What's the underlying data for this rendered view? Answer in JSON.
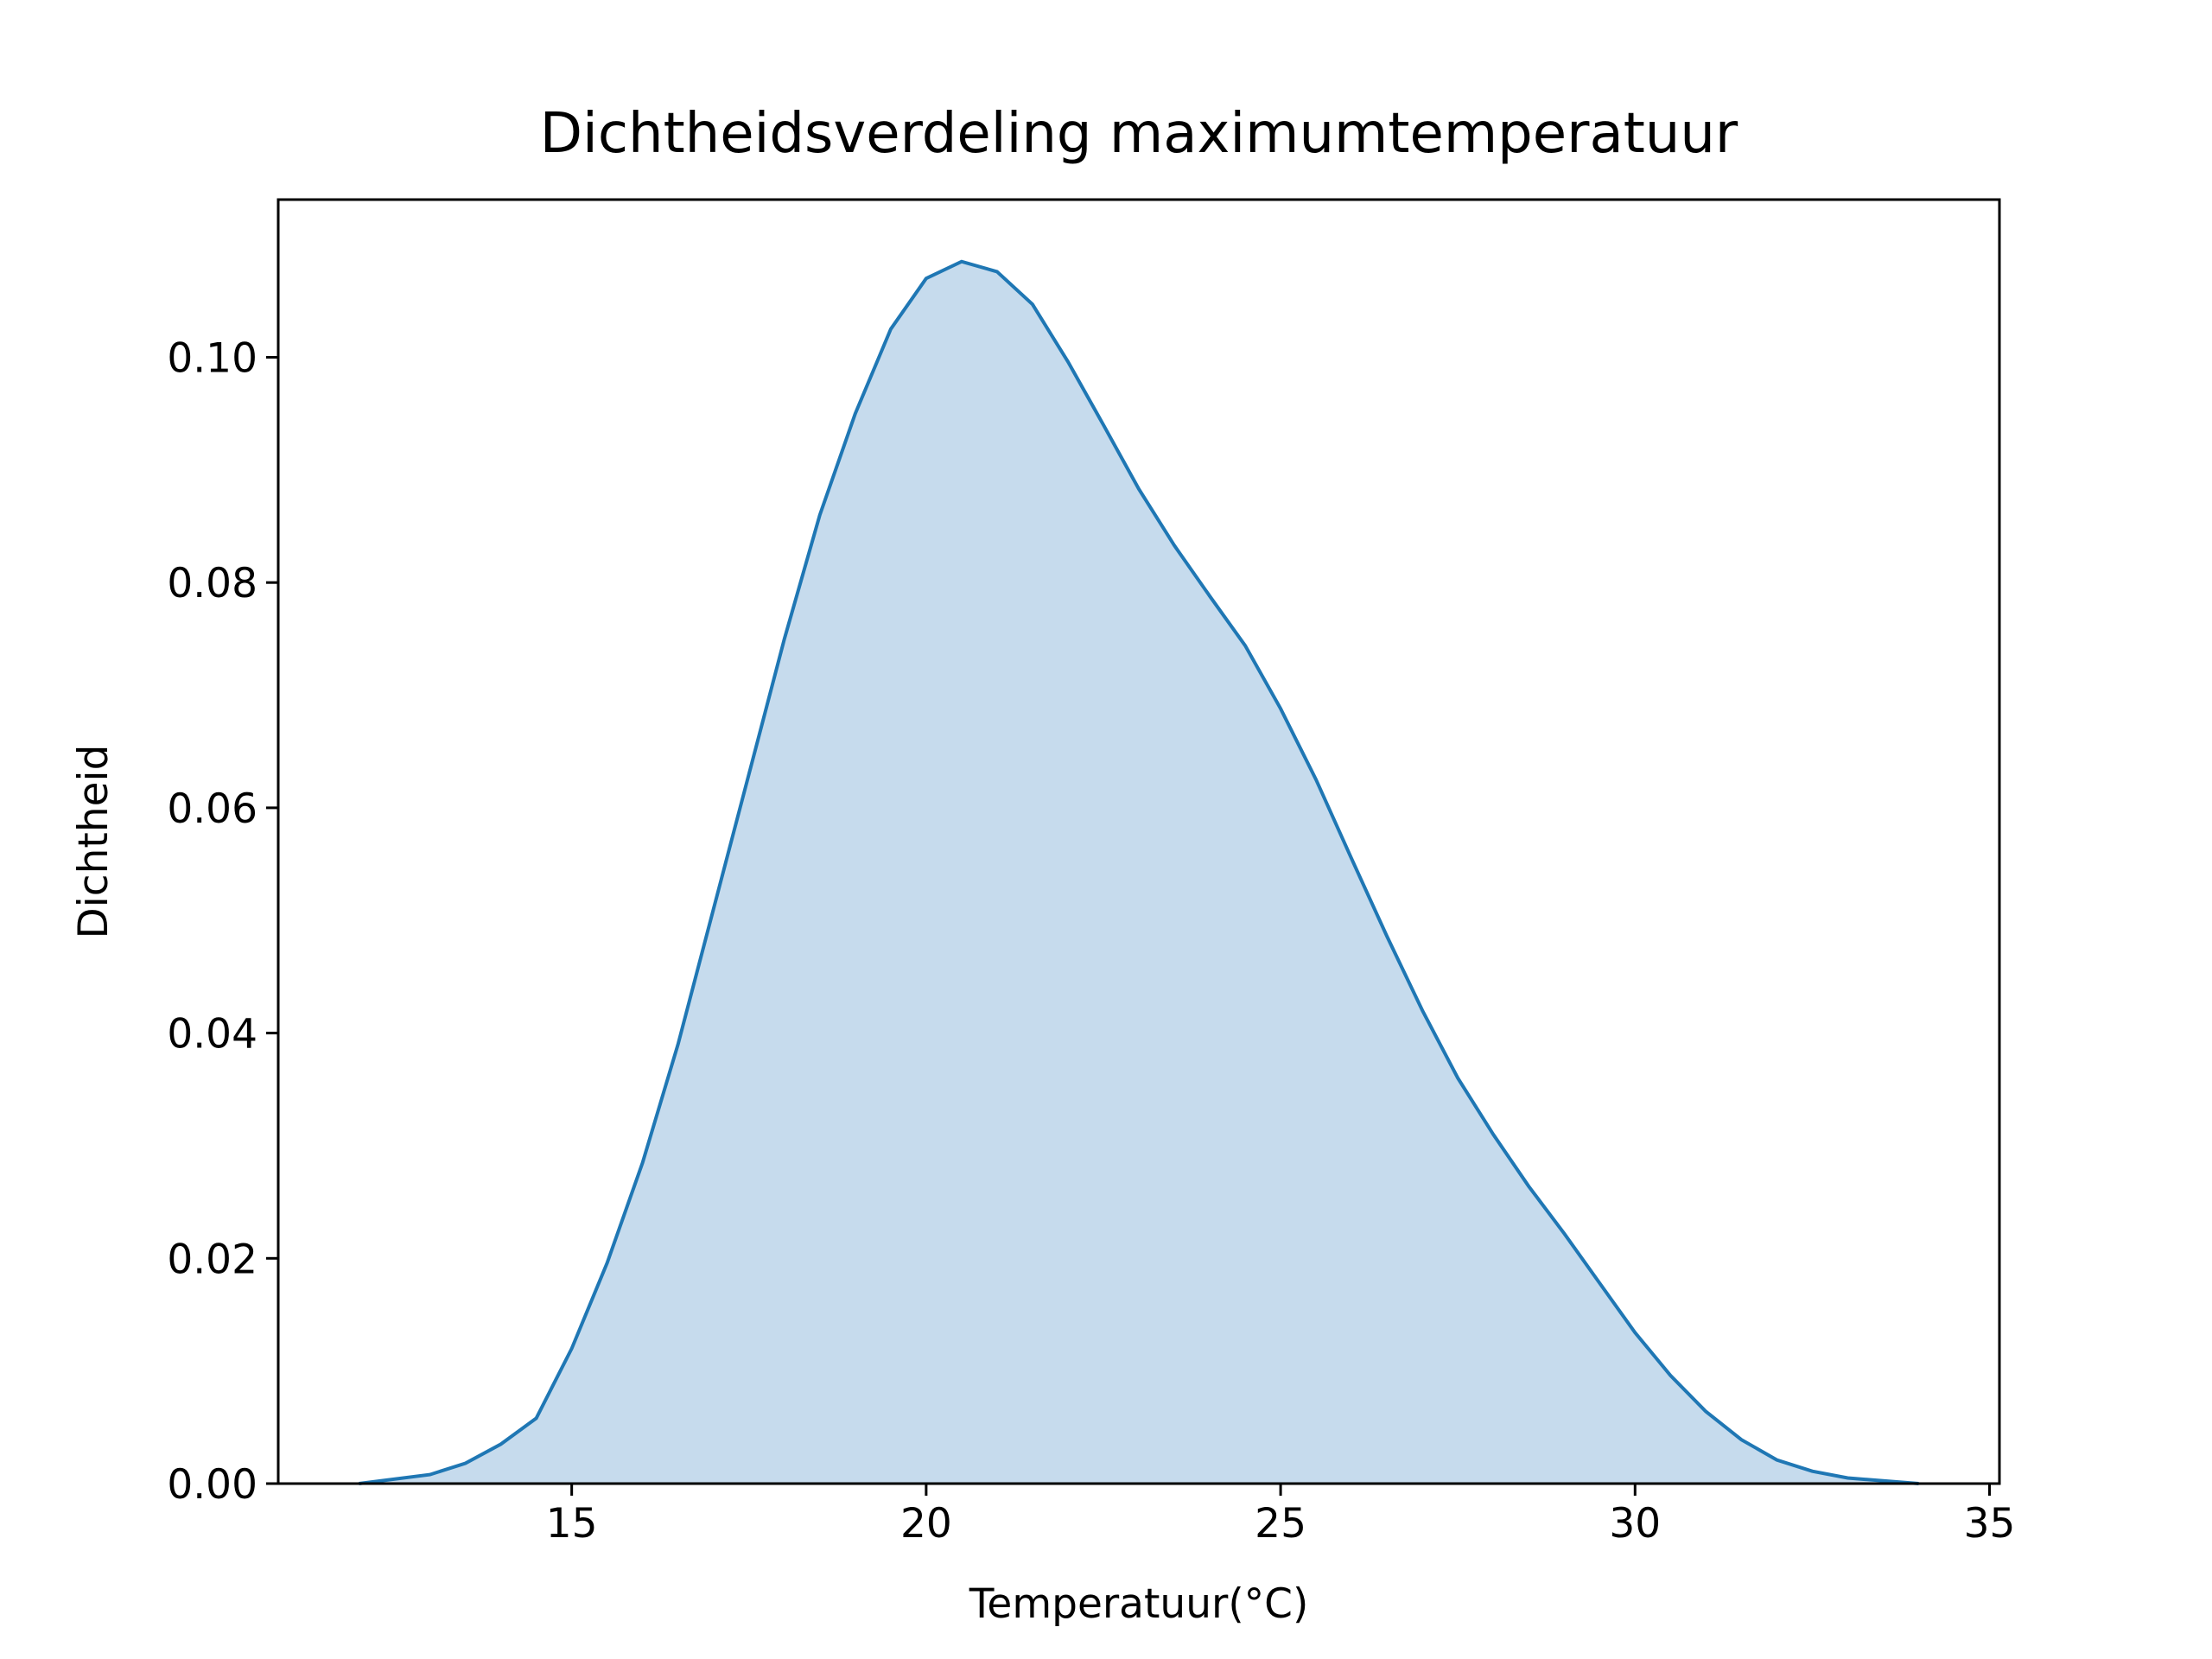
{
  "chart_data": {
    "type": "area",
    "title": "Dichtheidsverdeling maximumtemperatuur",
    "xlabel": "Temperatuur(°C)",
    "ylabel": "Dichtheid",
    "x": [
      12,
      13,
      13.5,
      14,
      14.5,
      15,
      15.5,
      16,
      16.5,
      17,
      17.5,
      18,
      18.5,
      19,
      19.5,
      20,
      20.5,
      21,
      21.5,
      22,
      22.5,
      23,
      23.5,
      24,
      24.5,
      25,
      25.5,
      26,
      26.5,
      27,
      27.5,
      28,
      28.5,
      29,
      29.5,
      30,
      30.5,
      31,
      31.5,
      32,
      32.5,
      33,
      34
    ],
    "values": [
      0.0,
      0.0008,
      0.0018,
      0.0035,
      0.0058,
      0.012,
      0.0196,
      0.0285,
      0.039,
      0.051,
      0.063,
      0.075,
      0.086,
      0.095,
      0.1025,
      0.107,
      0.1085,
      0.1076,
      0.1047,
      0.0996,
      0.094,
      0.0883,
      0.0833,
      0.0788,
      0.0744,
      0.0688,
      0.0625,
      0.0555,
      0.0486,
      0.042,
      0.036,
      0.031,
      0.0264,
      0.0222,
      0.0178,
      0.0134,
      0.0096,
      0.0064,
      0.0039,
      0.0021,
      0.0011,
      0.0005,
      0.0
    ],
    "color": "#1f77b4",
    "fill_color": "#c6dbed",
    "xlim": [
      10.86,
      35.14
    ],
    "ylim": [
      0,
      0.114
    ],
    "xticks": [
      15,
      20,
      25,
      30,
      35
    ],
    "yticks": [
      {
        "value": 0,
        "label": "0.00"
      },
      {
        "value": 0.02,
        "label": "0.02"
      },
      {
        "value": 0.04,
        "label": "0.04"
      },
      {
        "value": 0.06,
        "label": "0.06"
      },
      {
        "value": 0.08,
        "label": "0.08"
      },
      {
        "value": 0.1,
        "label": "0.10"
      }
    ]
  }
}
